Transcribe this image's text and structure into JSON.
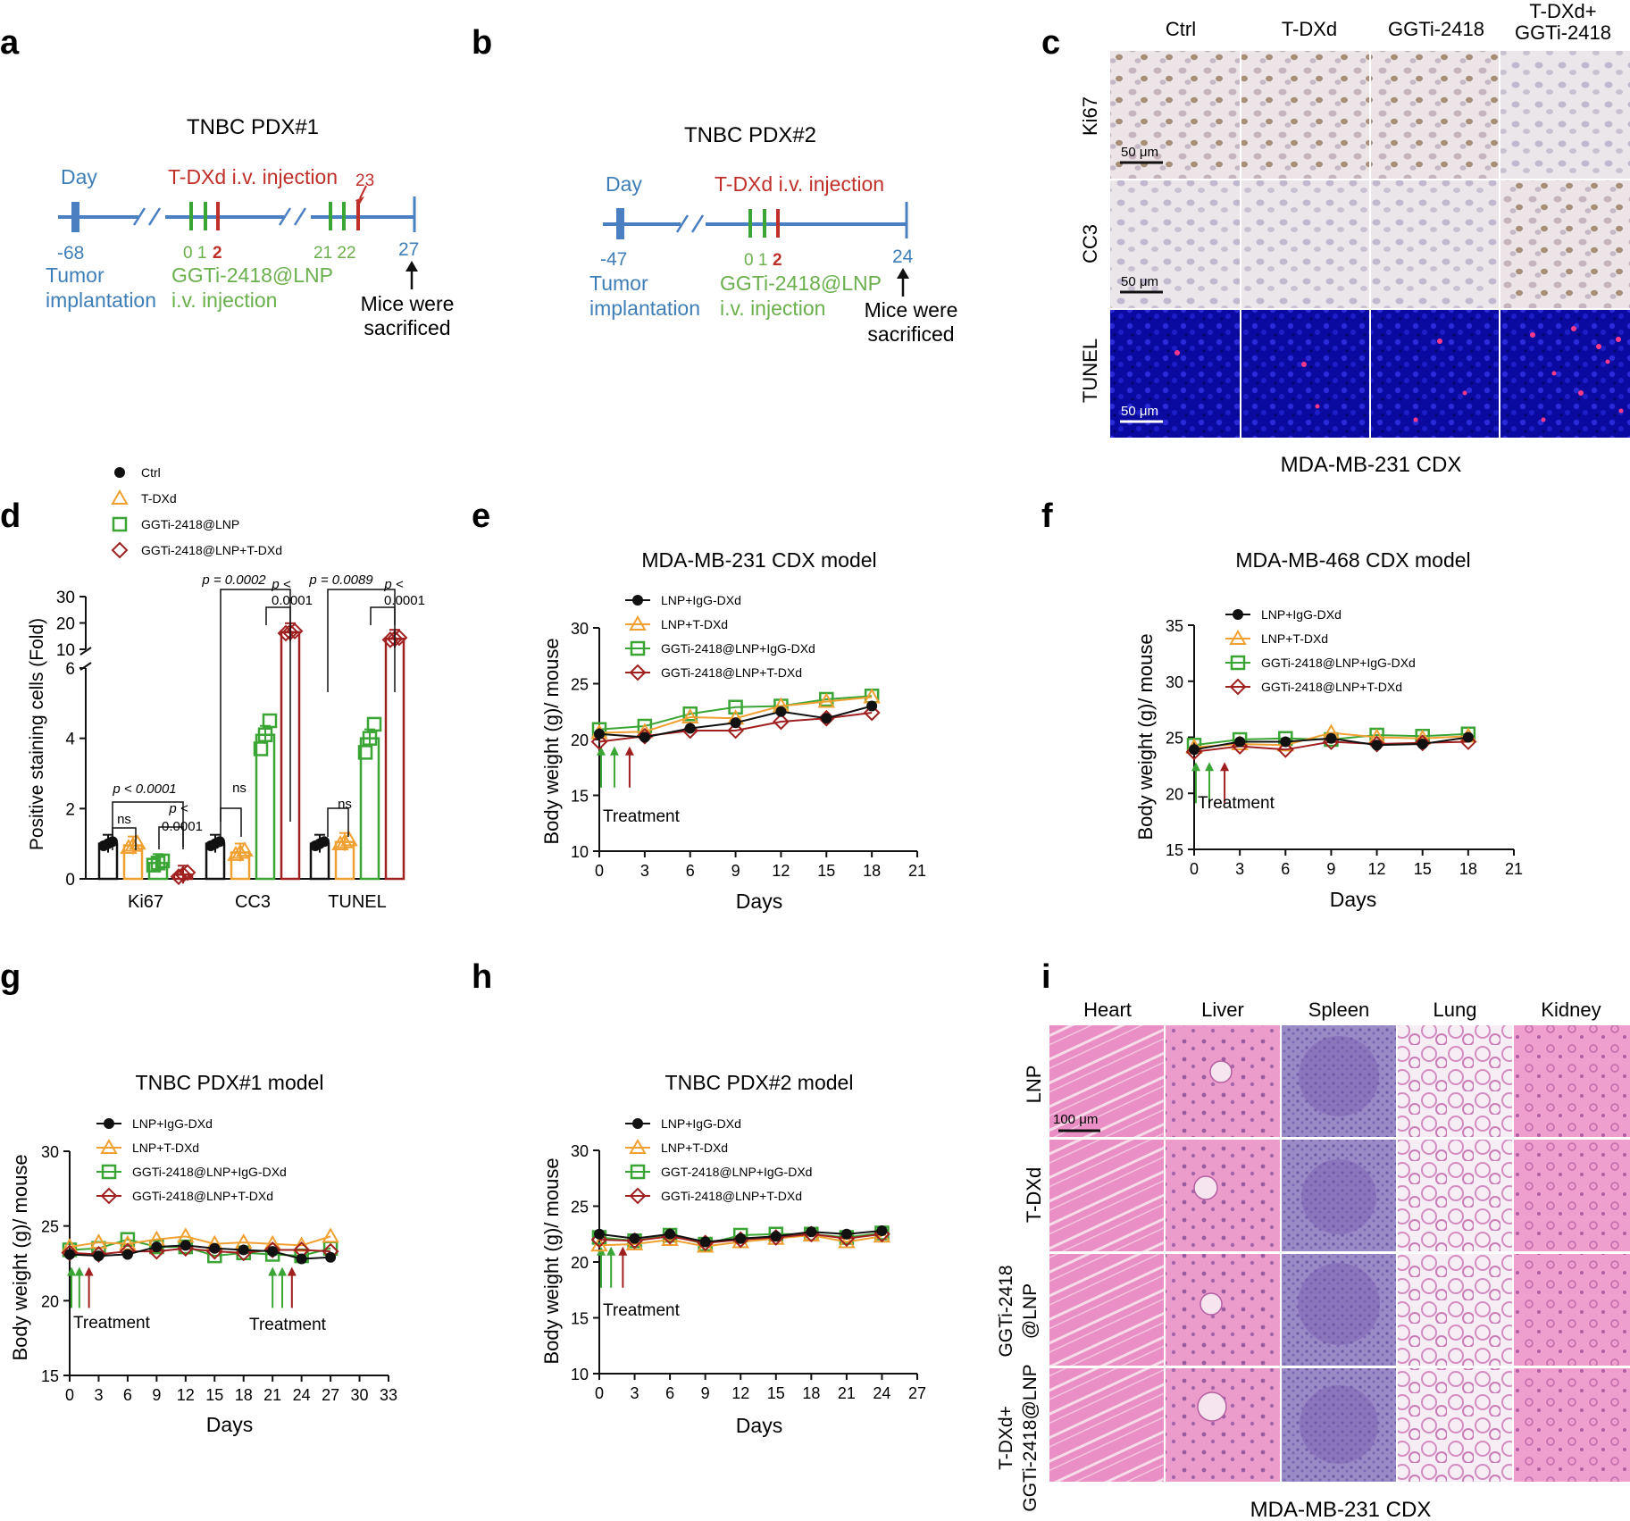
{
  "panels": {
    "a": {
      "letter": "a",
      "title": "TNBC PDX#1",
      "day_label": "Day",
      "injection_label": "T-DXd i.v. injection",
      "tick_start": "-68",
      "tick_end": "27",
      "green_ticks_1": "0 1",
      "red_tick_1": "2",
      "green_ticks_2": "21 22",
      "red_tick_2": "23",
      "tumor_1": "Tumor",
      "tumor_2": "implantation",
      "lnp_1": "GGTi-2418@LNP",
      "lnp_2": "i.v. injection",
      "sac_1": "Mice were",
      "sac_2": "sacrificed"
    },
    "b": {
      "letter": "b",
      "title": "TNBC PDX#2",
      "day_label": "Day",
      "injection_label": "T-DXd i.v. injection",
      "tick_start": "-47",
      "tick_end": "24",
      "green_ticks": "0 1",
      "red_tick": "2",
      "tumor_1": "Tumor",
      "tumor_2": "implantation",
      "lnp_1": "GGTi-2418@LNP",
      "lnp_2": "i.v. injection",
      "sac_1": "Mice were",
      "sac_2": "sacrificed"
    },
    "c": {
      "letter": "c",
      "columns": [
        "Ctrl",
        "T-DXd",
        "GGTi-2418",
        "T-DXd+",
        "GGTi-2418"
      ],
      "rows": [
        "Ki67",
        "CC3",
        "TUNEL"
      ],
      "scale_bar": "50 μm",
      "caption": "MDA-MB-231 CDX"
    },
    "i": {
      "letter": "i",
      "columns": [
        "Heart",
        "Liver",
        "Spleen",
        "Lung",
        "Kidney"
      ],
      "rows": [
        "LNP",
        "T-DXd",
        "GGTi-2418",
        "@LNP",
        "T-DXd+",
        "GGTi-2418@LNP"
      ],
      "scale_bar": "100 μm",
      "caption": "MDA-MB-231 CDX"
    }
  },
  "colors": {
    "black": "#111111",
    "orange": "#f0a030",
    "green": "#3aa535",
    "darkred": "#a02020",
    "timeline_blue": "#4a7fc1",
    "label_blue": "#3f7fb8",
    "label_green": "#6ab04c",
    "label_red": "#c0302a",
    "tunel_bg": "#0a0aa0"
  },
  "chart_data": [
    {
      "id": "d",
      "type": "bar",
      "letter": "d",
      "ylabel": "Positive staining cells (Fold)",
      "categories": [
        "Ki67",
        "CC3",
        "TUNEL"
      ],
      "y_ticks_lower": [
        "0",
        "2",
        "4",
        "6"
      ],
      "y_ticks_upper": [
        "10",
        "20",
        "30"
      ],
      "series": [
        {
          "name": "Ctrl",
          "values": [
            1.0,
            1.0,
            1.0
          ]
        },
        {
          "name": "T-DXd",
          "values": [
            0.95,
            0.75,
            1.05
          ]
        },
        {
          "name": "GGTi-2418@LNP",
          "values": [
            0.45,
            4.1,
            4.0
          ]
        },
        {
          "name": "GGTi-2418@LNP+T-DXd",
          "values": [
            0.12,
            16.5,
            14.0
          ]
        }
      ],
      "annotations": {
        "ns": "ns",
        "ki67_p1": "p < 0.0001",
        "ki67_p2a": "p <",
        "ki67_p2b": "0.0001",
        "cc3_p1": "p = 0.0002",
        "cc3_p2a": "p <",
        "cc3_p2b": "0.0001",
        "tunel_p1": "p = 0.0089",
        "tunel_p2a": "p <",
        "tunel_p2b": "0.0001"
      }
    },
    {
      "id": "e",
      "type": "line",
      "letter": "e",
      "title": "MDA-MB-231 CDX model",
      "xlabel": "Days",
      "ylabel": "Body weight (g)/ mouse",
      "xlim": [
        0,
        21
      ],
      "ylim": [
        10,
        30
      ],
      "x_ticks": [
        "0",
        "3",
        "6",
        "9",
        "12",
        "15",
        "18",
        "21"
      ],
      "y_ticks": [
        "10",
        "15",
        "20",
        "25",
        "30"
      ],
      "treatment_label": "Treatment",
      "x": [
        0,
        3,
        6,
        9,
        12,
        15,
        18
      ],
      "series": [
        {
          "name": "LNP+IgG-DXd",
          "values": [
            20.5,
            20.2,
            21.0,
            21.5,
            22.5,
            21.9,
            23.0
          ]
        },
        {
          "name": "LNP+T-DXd",
          "values": [
            20.6,
            20.7,
            22.0,
            21.9,
            23.0,
            23.4,
            23.8
          ]
        },
        {
          "name": "GGTi-2418@LNP+IgG-DXd",
          "values": [
            20.9,
            21.2,
            22.3,
            22.9,
            23.0,
            23.6,
            23.9
          ]
        },
        {
          "name": "GGTi-2418@LNP+T-DXd",
          "values": [
            19.8,
            20.3,
            20.8,
            20.8,
            21.6,
            21.9,
            22.4
          ]
        }
      ]
    },
    {
      "id": "f",
      "type": "line",
      "letter": "f",
      "title": "MDA-MB-468 CDX model",
      "xlabel": "Days",
      "ylabel": "Body weight (g)/ mouse",
      "xlim": [
        0,
        21
      ],
      "ylim": [
        15,
        35
      ],
      "x_ticks": [
        "0",
        "3",
        "6",
        "9",
        "12",
        "15",
        "18",
        "21"
      ],
      "y_ticks": [
        "15",
        "20",
        "25",
        "30",
        "35"
      ],
      "treatment_label": "Treatment",
      "x": [
        0,
        3,
        6,
        9,
        12,
        15,
        18
      ],
      "series": [
        {
          "name": "LNP+IgG-DXd",
          "values": [
            23.9,
            24.6,
            24.6,
            24.9,
            24.3,
            24.4,
            25.0
          ]
        },
        {
          "name": "LNP+T-DXd",
          "values": [
            24.1,
            24.4,
            24.3,
            25.4,
            25.0,
            24.9,
            25.1
          ]
        },
        {
          "name": "GGTi-2418@LNP+IgG-DXd",
          "values": [
            24.3,
            24.8,
            24.9,
            24.8,
            25.2,
            25.1,
            25.3
          ]
        },
        {
          "name": "GGTi-2418@LNP+T-DXd",
          "values": [
            23.7,
            24.2,
            23.9,
            24.6,
            24.4,
            24.5,
            24.6
          ]
        }
      ]
    },
    {
      "id": "g",
      "type": "line",
      "letter": "g",
      "title": "TNBC PDX#1 model",
      "xlabel": "Days",
      "ylabel": "Body weight (g)/ mouse",
      "xlim": [
        0,
        33
      ],
      "ylim": [
        15,
        30
      ],
      "x_ticks": [
        "0",
        "3",
        "6",
        "9",
        "12",
        "15",
        "18",
        "21",
        "24",
        "27",
        "30",
        "33"
      ],
      "y_ticks": [
        "15",
        "20",
        "25",
        "30"
      ],
      "treatment_label": "Treatment",
      "x": [
        0,
        3,
        6,
        9,
        12,
        15,
        18,
        21,
        24,
        27
      ],
      "series": [
        {
          "name": "LNP+IgG-DXd",
          "values": [
            23.1,
            23.0,
            23.1,
            23.6,
            23.7,
            23.5,
            23.4,
            23.3,
            22.8,
            22.9
          ]
        },
        {
          "name": "LNP+T-DXd",
          "values": [
            23.6,
            23.9,
            23.8,
            24.1,
            24.3,
            23.8,
            23.9,
            23.8,
            23.7,
            24.3
          ]
        },
        {
          "name": "GGTi-2418@LNP+IgG-DXd",
          "values": [
            23.4,
            23.5,
            24.1,
            23.6,
            23.6,
            23.0,
            23.2,
            23.1,
            23.0,
            23.5
          ]
        },
        {
          "name": "GGTi-2418@LNP+T-DXd",
          "values": [
            23.2,
            23.1,
            23.3,
            23.3,
            23.5,
            23.3,
            23.2,
            23.4,
            23.4,
            23.3
          ]
        }
      ]
    },
    {
      "id": "h",
      "type": "line",
      "letter": "h",
      "title": "TNBC PDX#2 model",
      "xlabel": "Days",
      "ylabel": "Body weight (g)/ mouse",
      "xlim": [
        0,
        27
      ],
      "ylim": [
        10,
        30
      ],
      "x_ticks": [
        "0",
        "3",
        "6",
        "9",
        "12",
        "15",
        "18",
        "21",
        "24",
        "27"
      ],
      "y_ticks": [
        "10",
        "15",
        "20",
        "25",
        "30"
      ],
      "treatment_label": "Treatment",
      "x": [
        0,
        3,
        6,
        9,
        12,
        15,
        18,
        21,
        24
      ],
      "series": [
        {
          "name": "LNP+IgG-DXd",
          "values": [
            22.5,
            22.1,
            22.5,
            21.8,
            22.1,
            22.3,
            22.7,
            22.5,
            22.8
          ]
        },
        {
          "name": "LNP+T-DXd",
          "values": [
            21.5,
            21.6,
            22.0,
            21.4,
            21.8,
            22.1,
            22.4,
            21.8,
            22.3
          ]
        },
        {
          "name": "GGT-2418@LNP+IgG-DXd",
          "values": [
            22.2,
            21.9,
            22.4,
            21.6,
            22.4,
            22.5,
            22.5,
            22.2,
            22.6
          ]
        },
        {
          "name": "GGTi-2418@LNP+T-DXd",
          "values": [
            22.0,
            21.9,
            22.3,
            21.7,
            22.0,
            22.2,
            22.5,
            22.1,
            22.5
          ]
        }
      ]
    }
  ]
}
